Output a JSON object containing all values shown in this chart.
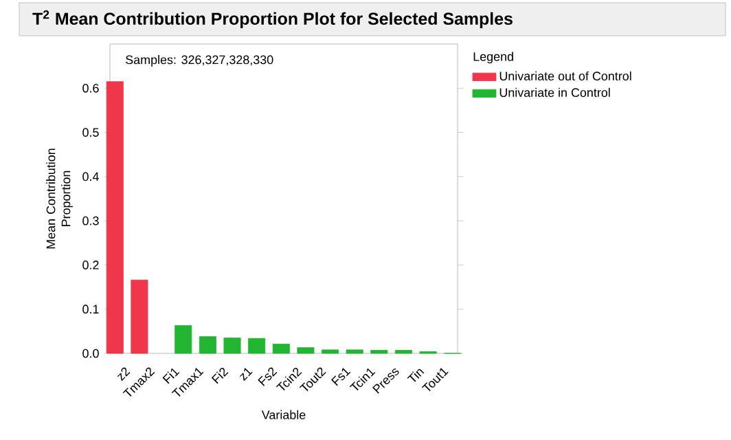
{
  "chart_data": {
    "type": "bar",
    "title": "T$^{2}$ Mean Contribution Proportion Plot for Selected Samples",
    "xlabel": "Variable",
    "ylabel": "Mean Contribution Proportion",
    "legend_title": "Legend",
    "legend": "right",
    "annotations": [
      "Samples: 326,327,328,330"
    ],
    "categories": [
      "z2",
      "Tmax2",
      "Fi1",
      "Tmax1",
      "Fi2",
      "z1",
      "Fs2",
      "Tcin2",
      "Tout2",
      "Fs1",
      "Tcin1",
      "Press",
      "Tin",
      "Tout1"
    ],
    "series": [
      {
        "name": "Univariate out of Control",
        "color": "#f0364b",
        "values": [
          0.615,
          0.166,
          null,
          null,
          null,
          null,
          null,
          null,
          null,
          null,
          null,
          null,
          null,
          null
        ]
      },
      {
        "name": "Univariate in Control",
        "color": "#22b531",
        "values": [
          null,
          null,
          0.063,
          0.038,
          0.035,
          0.034,
          0.021,
          0.013,
          0.008,
          0.008,
          0.007,
          0.007,
          0.004,
          0.0
        ]
      }
    ],
    "ylim": [
      0,
      0.7
    ],
    "yticks": [
      {
        "value": 0,
        "label": "0.0"
      },
      0.1,
      0.2,
      0.3,
      0.4,
      0.5,
      0.6
    ],
    "grid": false
  }
}
